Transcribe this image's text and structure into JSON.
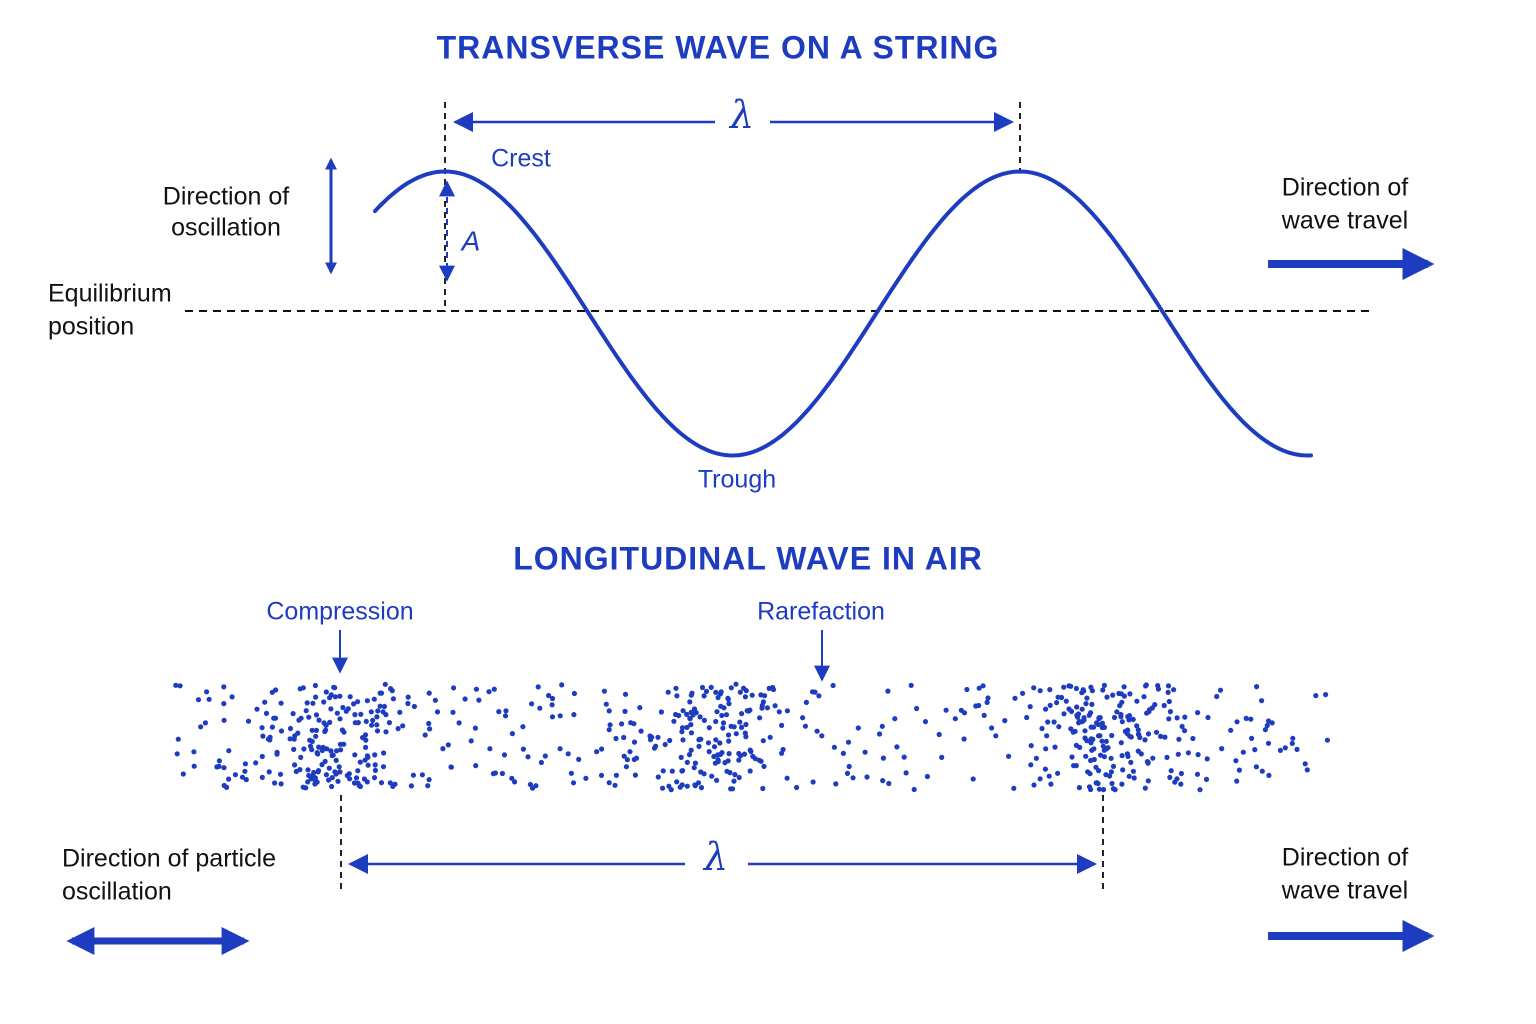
{
  "transverse": {
    "title": "TRANSVERSE WAVE ON A STRING",
    "wavelength": "λ",
    "crest": "Crest",
    "trough": "Trough",
    "amplitude": "A",
    "oscillation": [
      "Direction of",
      "oscillation"
    ],
    "equilibrium": [
      "Equilibrium",
      "position"
    ],
    "travel": [
      "Direction of",
      "wave travel"
    ]
  },
  "longitudinal": {
    "title": "LONGITUDINAL WAVE IN AIR",
    "compression": "Compression",
    "rarefaction": "Rarefaction",
    "wavelength": "λ",
    "oscillation": [
      "Direction of particle",
      "oscillation"
    ],
    "travel": [
      "Direction of",
      "wave travel"
    ]
  }
}
